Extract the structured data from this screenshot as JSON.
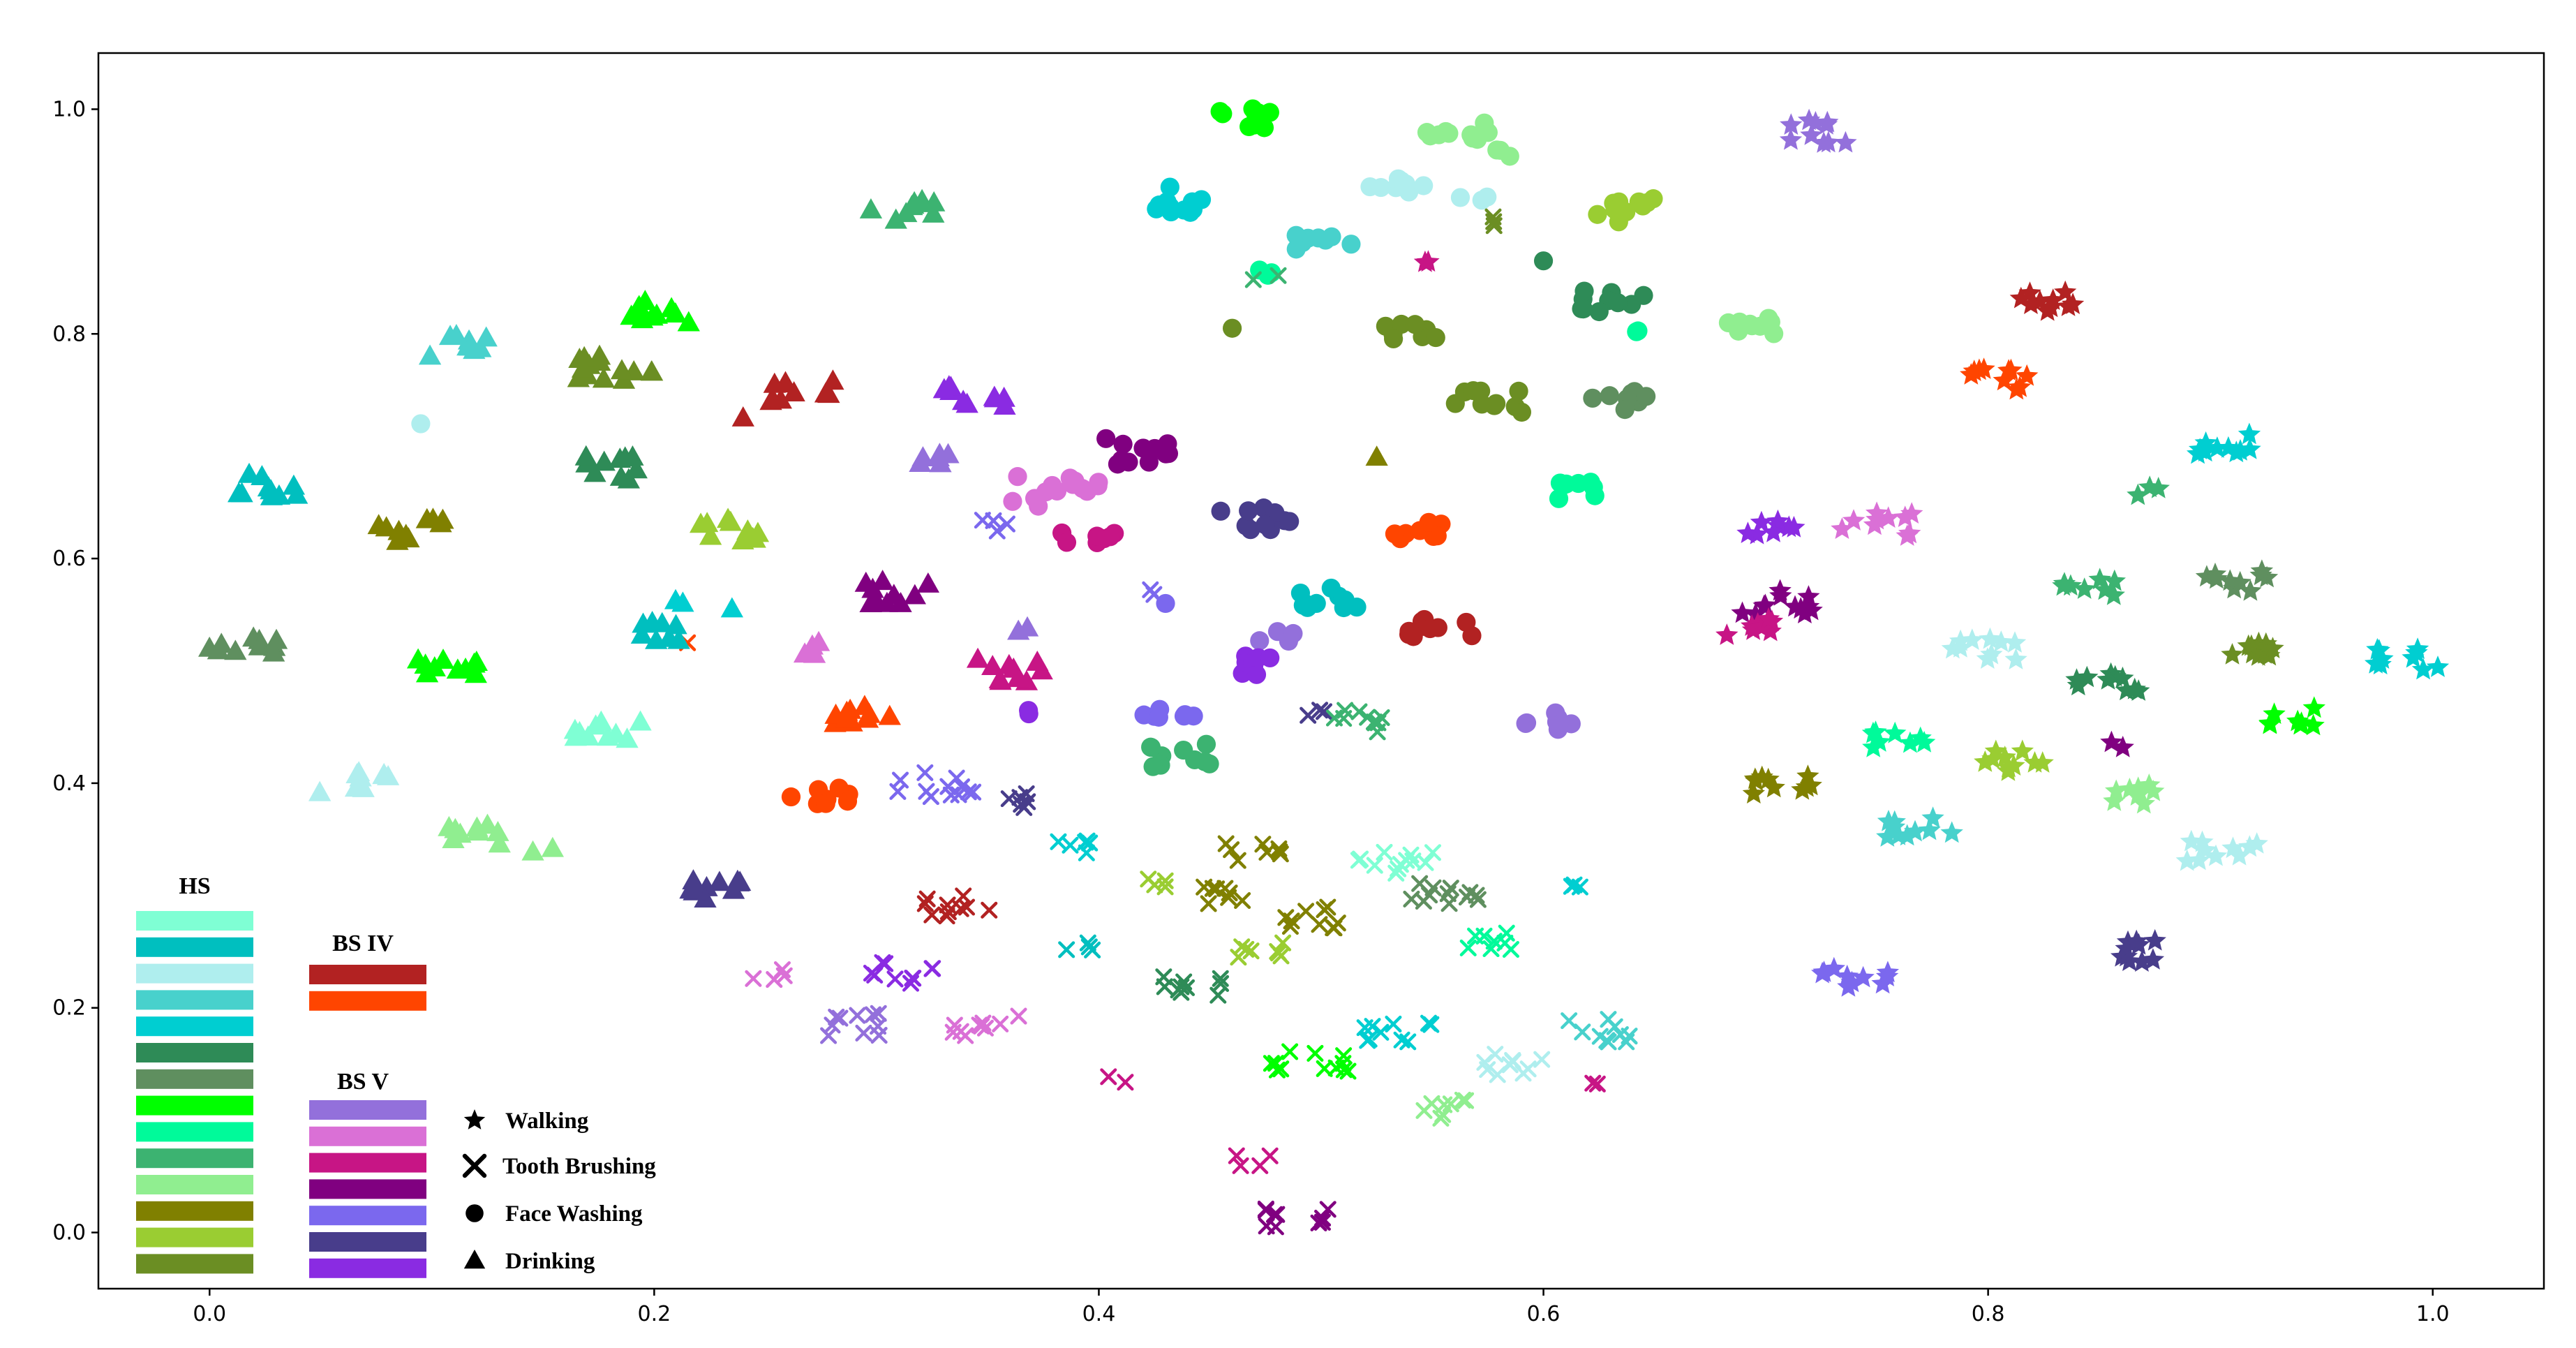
{
  "chart_data": {
    "type": "scatter",
    "title": "",
    "xlabel": "",
    "ylabel": "",
    "xlim": [
      -0.05,
      1.05
    ],
    "ylim": [
      -0.05,
      1.05
    ],
    "x_ticks": [
      0.0,
      0.2,
      0.4,
      0.6,
      0.8,
      1.0
    ],
    "x_tick_labels": [
      "0.0",
      "0.2",
      "0.4",
      "0.6",
      "0.8",
      "1.0"
    ],
    "y_ticks": [
      0.0,
      0.2,
      0.4,
      0.6,
      0.8,
      1.0
    ],
    "y_tick_labels": [
      "0.0",
      "0.2",
      "0.4",
      "0.6",
      "0.8",
      "1.0"
    ],
    "grid": false,
    "legend_groups": [
      {
        "title": "HS",
        "colors": [
          "#7fffd4",
          "#00bfbf",
          "#afeeee",
          "#48d1cc",
          "#00ced1",
          "#2e8b57",
          "#5f8f5f",
          "#00ff00",
          "#00fa9a",
          "#3cb371",
          "#90ee90",
          "#808000",
          "#9acd32",
          "#6b8e23"
        ]
      },
      {
        "title": "BS IV",
        "colors": [
          "#b22222",
          "#ff4500"
        ]
      },
      {
        "title": "BS V",
        "colors": [
          "#9370db",
          "#da70d6",
          "#c71585",
          "#800080",
          "#7b68ee",
          "#483d8b",
          "#8a2be2"
        ]
      }
    ],
    "marker_legend": [
      {
        "marker": "star",
        "label": "Walking"
      },
      {
        "marker": "x",
        "label": "Tooth Brushing"
      },
      {
        "marker": "circle",
        "label": "Face Washing"
      },
      {
        "marker": "triangle",
        "label": "Drinking"
      }
    ],
    "clusters": [
      {
        "x": 0.465,
        "y": 0.99,
        "color": "#00ff00",
        "marker": "circle",
        "n": 10
      },
      {
        "x": 0.56,
        "y": 0.98,
        "color": "#90ee90",
        "marker": "circle",
        "n": 10
      },
      {
        "x": 0.58,
        "y": 0.96,
        "color": "#90ee90",
        "marker": "circle",
        "n": 3
      },
      {
        "x": 0.435,
        "y": 0.92,
        "color": "#00ced1",
        "marker": "circle",
        "n": 12
      },
      {
        "x": 0.535,
        "y": 0.93,
        "color": "#afeeee",
        "marker": "circle",
        "n": 8
      },
      {
        "x": 0.57,
        "y": 0.92,
        "color": "#afeeee",
        "marker": "circle",
        "n": 3
      },
      {
        "x": 0.5,
        "y": 0.88,
        "color": "#48d1cc",
        "marker": "circle",
        "n": 8
      },
      {
        "x": 0.64,
        "y": 0.91,
        "color": "#9acd32",
        "marker": "circle",
        "n": 10
      },
      {
        "x": 0.575,
        "y": 0.9,
        "color": "#6b8e23",
        "marker": "x",
        "n": 3
      },
      {
        "x": 0.475,
        "y": 0.855,
        "color": "#00fa9a",
        "marker": "circle",
        "n": 3
      },
      {
        "x": 0.55,
        "y": 0.865,
        "color": "#c71585",
        "marker": "star",
        "n": 2
      },
      {
        "x": 0.6,
        "y": 0.865,
        "color": "#2e8b57",
        "marker": "circle",
        "n": 1
      },
      {
        "x": 0.63,
        "y": 0.83,
        "color": "#2e8b57",
        "marker": "circle",
        "n": 10
      },
      {
        "x": 0.46,
        "y": 0.805,
        "color": "#6b8e23",
        "marker": "circle",
        "n": 1
      },
      {
        "x": 0.54,
        "y": 0.8,
        "color": "#6b8e23",
        "marker": "circle",
        "n": 8
      },
      {
        "x": 0.645,
        "y": 0.8,
        "color": "#00fa9a",
        "marker": "circle",
        "n": 2
      },
      {
        "x": 0.695,
        "y": 0.81,
        "color": "#90ee90",
        "marker": "circle",
        "n": 10
      },
      {
        "x": 0.575,
        "y": 0.74,
        "color": "#6b8e23",
        "marker": "circle",
        "n": 10
      },
      {
        "x": 0.635,
        "y": 0.74,
        "color": "#5f8f5f",
        "marker": "circle",
        "n": 8
      },
      {
        "x": 0.525,
        "y": 0.69,
        "color": "#808000",
        "marker": "triangle",
        "n": 1
      },
      {
        "x": 0.615,
        "y": 0.66,
        "color": "#00fa9a",
        "marker": "circle",
        "n": 8
      },
      {
        "x": 0.545,
        "y": 0.625,
        "color": "#ff4500",
        "marker": "circle",
        "n": 8
      },
      {
        "x": 0.42,
        "y": 0.695,
        "color": "#800080",
        "marker": "circle",
        "n": 12
      },
      {
        "x": 0.38,
        "y": 0.66,
        "color": "#da70d6",
        "marker": "circle",
        "n": 14
      },
      {
        "x": 0.395,
        "y": 0.62,
        "color": "#c71585",
        "marker": "circle",
        "n": 7
      },
      {
        "x": 0.47,
        "y": 0.635,
        "color": "#483d8b",
        "marker": "circle",
        "n": 10
      },
      {
        "x": 0.505,
        "y": 0.565,
        "color": "#00bfbf",
        "marker": "circle",
        "n": 10
      },
      {
        "x": 0.555,
        "y": 0.54,
        "color": "#b22222",
        "marker": "circle",
        "n": 10
      },
      {
        "x": 0.48,
        "y": 0.53,
        "color": "#9370db",
        "marker": "circle",
        "n": 4
      },
      {
        "x": 0.47,
        "y": 0.505,
        "color": "#8a2be2",
        "marker": "circle",
        "n": 8
      },
      {
        "x": 0.43,
        "y": 0.46,
        "color": "#7b68ee",
        "marker": "circle",
        "n": 8
      },
      {
        "x": 0.435,
        "y": 0.425,
        "color": "#3cb371",
        "marker": "circle",
        "n": 10
      },
      {
        "x": 0.6,
        "y": 0.455,
        "color": "#9370db",
        "marker": "circle",
        "n": 8
      },
      {
        "x": 0.275,
        "y": 0.39,
        "color": "#ff4500",
        "marker": "circle",
        "n": 8
      },
      {
        "x": 0.37,
        "y": 0.465,
        "color": "#8a2be2",
        "marker": "circle",
        "n": 2
      },
      {
        "x": 0.095,
        "y": 0.72,
        "color": "#afeeee",
        "marker": "circle",
        "n": 1
      },
      {
        "x": 0.43,
        "y": 0.56,
        "color": "#7b68ee",
        "marker": "circle",
        "n": 1
      },
      {
        "x": 0.725,
        "y": 0.98,
        "color": "#9370db",
        "marker": "star",
        "n": 10
      },
      {
        "x": 0.825,
        "y": 0.83,
        "color": "#b22222",
        "marker": "star",
        "n": 10
      },
      {
        "x": 0.805,
        "y": 0.76,
        "color": "#ff4500",
        "marker": "star",
        "n": 10
      },
      {
        "x": 0.905,
        "y": 0.7,
        "color": "#00ced1",
        "marker": "star",
        "n": 10
      },
      {
        "x": 0.87,
        "y": 0.66,
        "color": "#3cb371",
        "marker": "star",
        "n": 3
      },
      {
        "x": 0.75,
        "y": 0.63,
        "color": "#da70d6",
        "marker": "star",
        "n": 10
      },
      {
        "x": 0.7,
        "y": 0.625,
        "color": "#8a2be2",
        "marker": "star",
        "n": 8
      },
      {
        "x": 0.91,
        "y": 0.58,
        "color": "#5f8f5f",
        "marker": "star",
        "n": 10
      },
      {
        "x": 0.845,
        "y": 0.575,
        "color": "#3cb371",
        "marker": "star",
        "n": 8
      },
      {
        "x": 0.705,
        "y": 0.56,
        "color": "#800080",
        "marker": "star",
        "n": 12
      },
      {
        "x": 0.69,
        "y": 0.54,
        "color": "#c71585",
        "marker": "star",
        "n": 8
      },
      {
        "x": 0.8,
        "y": 0.52,
        "color": "#afeeee",
        "marker": "star",
        "n": 10
      },
      {
        "x": 0.925,
        "y": 0.52,
        "color": "#6b8e23",
        "marker": "star",
        "n": 10
      },
      {
        "x": 0.99,
        "y": 0.51,
        "color": "#00ced1",
        "marker": "star",
        "n": 10
      },
      {
        "x": 0.855,
        "y": 0.49,
        "color": "#2e8b57",
        "marker": "star",
        "n": 10
      },
      {
        "x": 0.94,
        "y": 0.46,
        "color": "#00ff00",
        "marker": "star",
        "n": 8
      },
      {
        "x": 0.76,
        "y": 0.44,
        "color": "#00fa9a",
        "marker": "star",
        "n": 8
      },
      {
        "x": 0.81,
        "y": 0.42,
        "color": "#9acd32",
        "marker": "star",
        "n": 10
      },
      {
        "x": 0.705,
        "y": 0.4,
        "color": "#808000",
        "marker": "star",
        "n": 10
      },
      {
        "x": 0.865,
        "y": 0.39,
        "color": "#90ee90",
        "marker": "star",
        "n": 8
      },
      {
        "x": 0.77,
        "y": 0.36,
        "color": "#48d1cc",
        "marker": "star",
        "n": 10
      },
      {
        "x": 0.905,
        "y": 0.34,
        "color": "#afeeee",
        "marker": "star",
        "n": 10
      },
      {
        "x": 0.86,
        "y": 0.25,
        "color": "#483d8b",
        "marker": "star",
        "n": 10
      },
      {
        "x": 0.74,
        "y": 0.225,
        "color": "#7b68ee",
        "marker": "star",
        "n": 10
      },
      {
        "x": 0.855,
        "y": 0.435,
        "color": "#800080",
        "marker": "star",
        "n": 2
      },
      {
        "x": 0.5,
        "y": 0.465,
        "color": "#483d8b",
        "marker": "x",
        "n": 3
      },
      {
        "x": 0.52,
        "y": 0.455,
        "color": "#3cb371",
        "marker": "x",
        "n": 10
      },
      {
        "x": 0.535,
        "y": 0.33,
        "color": "#7fffd4",
        "marker": "x",
        "n": 12
      },
      {
        "x": 0.555,
        "y": 0.3,
        "color": "#5f8f5f",
        "marker": "x",
        "n": 12
      },
      {
        "x": 0.47,
        "y": 0.34,
        "color": "#808000",
        "marker": "x",
        "n": 8
      },
      {
        "x": 0.46,
        "y": 0.3,
        "color": "#808000",
        "marker": "x",
        "n": 8
      },
      {
        "x": 0.5,
        "y": 0.28,
        "color": "#808000",
        "marker": "x",
        "n": 10
      },
      {
        "x": 0.47,
        "y": 0.25,
        "color": "#9acd32",
        "marker": "x",
        "n": 8
      },
      {
        "x": 0.575,
        "y": 0.26,
        "color": "#00fa9a",
        "marker": "x",
        "n": 8
      },
      {
        "x": 0.44,
        "y": 0.22,
        "color": "#2e8b57",
        "marker": "x",
        "n": 10
      },
      {
        "x": 0.495,
        "y": 0.15,
        "color": "#00ff00",
        "marker": "x",
        "n": 12
      },
      {
        "x": 0.535,
        "y": 0.18,
        "color": "#00ced1",
        "marker": "x",
        "n": 10
      },
      {
        "x": 0.585,
        "y": 0.15,
        "color": "#afeeee",
        "marker": "x",
        "n": 10
      },
      {
        "x": 0.625,
        "y": 0.18,
        "color": "#48d1cc",
        "marker": "x",
        "n": 10
      },
      {
        "x": 0.555,
        "y": 0.11,
        "color": "#90ee90",
        "marker": "x",
        "n": 8
      },
      {
        "x": 0.62,
        "y": 0.135,
        "color": "#c71585",
        "marker": "x",
        "n": 2
      },
      {
        "x": 0.49,
        "y": 0.015,
        "color": "#800080",
        "marker": "x",
        "n": 10
      },
      {
        "x": 0.47,
        "y": 0.065,
        "color": "#c71585",
        "marker": "x",
        "n": 4
      },
      {
        "x": 0.41,
        "y": 0.135,
        "color": "#c71585",
        "marker": "x",
        "n": 2
      },
      {
        "x": 0.35,
        "y": 0.185,
        "color": "#da70d6",
        "marker": "x",
        "n": 10
      },
      {
        "x": 0.29,
        "y": 0.185,
        "color": "#9370db",
        "marker": "x",
        "n": 10
      },
      {
        "x": 0.25,
        "y": 0.23,
        "color": "#da70d6",
        "marker": "x",
        "n": 4
      },
      {
        "x": 0.31,
        "y": 0.23,
        "color": "#8a2be2",
        "marker": "x",
        "n": 10
      },
      {
        "x": 0.335,
        "y": 0.29,
        "color": "#b22222",
        "marker": "x",
        "n": 10
      },
      {
        "x": 0.325,
        "y": 0.4,
        "color": "#7b68ee",
        "marker": "x",
        "n": 12
      },
      {
        "x": 0.36,
        "y": 0.385,
        "color": "#483d8b",
        "marker": "x",
        "n": 6
      },
      {
        "x": 0.39,
        "y": 0.345,
        "color": "#00ced1",
        "marker": "x",
        "n": 6
      },
      {
        "x": 0.425,
        "y": 0.31,
        "color": "#9acd32",
        "marker": "x",
        "n": 4
      },
      {
        "x": 0.39,
        "y": 0.255,
        "color": "#00bfbf",
        "marker": "x",
        "n": 4
      },
      {
        "x": 0.35,
        "y": 0.63,
        "color": "#7b68ee",
        "marker": "x",
        "n": 4
      },
      {
        "x": 0.215,
        "y": 0.525,
        "color": "#ff4500",
        "marker": "x",
        "n": 1
      },
      {
        "x": 0.475,
        "y": 0.85,
        "color": "#3cb371",
        "marker": "x",
        "n": 2
      },
      {
        "x": 0.425,
        "y": 0.57,
        "color": "#7b68ee",
        "marker": "x",
        "n": 2
      },
      {
        "x": 0.62,
        "y": 0.31,
        "color": "#00ced1",
        "marker": "x",
        "n": 3
      },
      {
        "x": 0.31,
        "y": 0.91,
        "color": "#3cb371",
        "marker": "triangle",
        "n": 10
      },
      {
        "x": 0.115,
        "y": 0.79,
        "color": "#48d1cc",
        "marker": "triangle",
        "n": 10
      },
      {
        "x": 0.2,
        "y": 0.82,
        "color": "#00ff00",
        "marker": "triangle",
        "n": 10
      },
      {
        "x": 0.18,
        "y": 0.77,
        "color": "#6b8e23",
        "marker": "triangle",
        "n": 14
      },
      {
        "x": 0.265,
        "y": 0.75,
        "color": "#b22222",
        "marker": "triangle",
        "n": 10
      },
      {
        "x": 0.345,
        "y": 0.745,
        "color": "#8a2be2",
        "marker": "triangle",
        "n": 10
      },
      {
        "x": 0.025,
        "y": 0.665,
        "color": "#00bfbf",
        "marker": "triangle",
        "n": 10
      },
      {
        "x": 0.18,
        "y": 0.68,
        "color": "#2e8b57",
        "marker": "triangle",
        "n": 10
      },
      {
        "x": 0.325,
        "y": 0.69,
        "color": "#9370db",
        "marker": "triangle",
        "n": 6
      },
      {
        "x": 0.09,
        "y": 0.625,
        "color": "#808000",
        "marker": "triangle",
        "n": 10
      },
      {
        "x": 0.235,
        "y": 0.625,
        "color": "#9acd32",
        "marker": "triangle",
        "n": 10
      },
      {
        "x": 0.31,
        "y": 0.57,
        "color": "#800080",
        "marker": "triangle",
        "n": 10
      },
      {
        "x": 0.015,
        "y": 0.52,
        "color": "#5f8f5f",
        "marker": "triangle",
        "n": 10
      },
      {
        "x": 0.105,
        "y": 0.505,
        "color": "#00ff00",
        "marker": "triangle",
        "n": 10
      },
      {
        "x": 0.205,
        "y": 0.535,
        "color": "#00bfbf",
        "marker": "triangle",
        "n": 8
      },
      {
        "x": 0.27,
        "y": 0.52,
        "color": "#da70d6",
        "marker": "triangle",
        "n": 4
      },
      {
        "x": 0.36,
        "y": 0.5,
        "color": "#c71585",
        "marker": "triangle",
        "n": 10
      },
      {
        "x": 0.295,
        "y": 0.46,
        "color": "#ff4500",
        "marker": "triangle",
        "n": 10
      },
      {
        "x": 0.18,
        "y": 0.445,
        "color": "#7fffd4",
        "marker": "triangle",
        "n": 10
      },
      {
        "x": 0.065,
        "y": 0.4,
        "color": "#afeeee",
        "marker": "triangle",
        "n": 10
      },
      {
        "x": 0.12,
        "y": 0.355,
        "color": "#90ee90",
        "marker": "triangle",
        "n": 10
      },
      {
        "x": 0.15,
        "y": 0.34,
        "color": "#90ee90",
        "marker": "triangle",
        "n": 2
      },
      {
        "x": 0.225,
        "y": 0.305,
        "color": "#483d8b",
        "marker": "triangle",
        "n": 10
      },
      {
        "x": 0.24,
        "y": 0.725,
        "color": "#b22222",
        "marker": "triangle",
        "n": 1
      },
      {
        "x": 0.235,
        "y": 0.555,
        "color": "#00ced1",
        "marker": "triangle",
        "n": 1
      },
      {
        "x": 0.37,
        "y": 0.535,
        "color": "#9370db",
        "marker": "triangle",
        "n": 2
      },
      {
        "x": 0.215,
        "y": 0.56,
        "color": "#00ced1",
        "marker": "triangle",
        "n": 2
      }
    ]
  }
}
